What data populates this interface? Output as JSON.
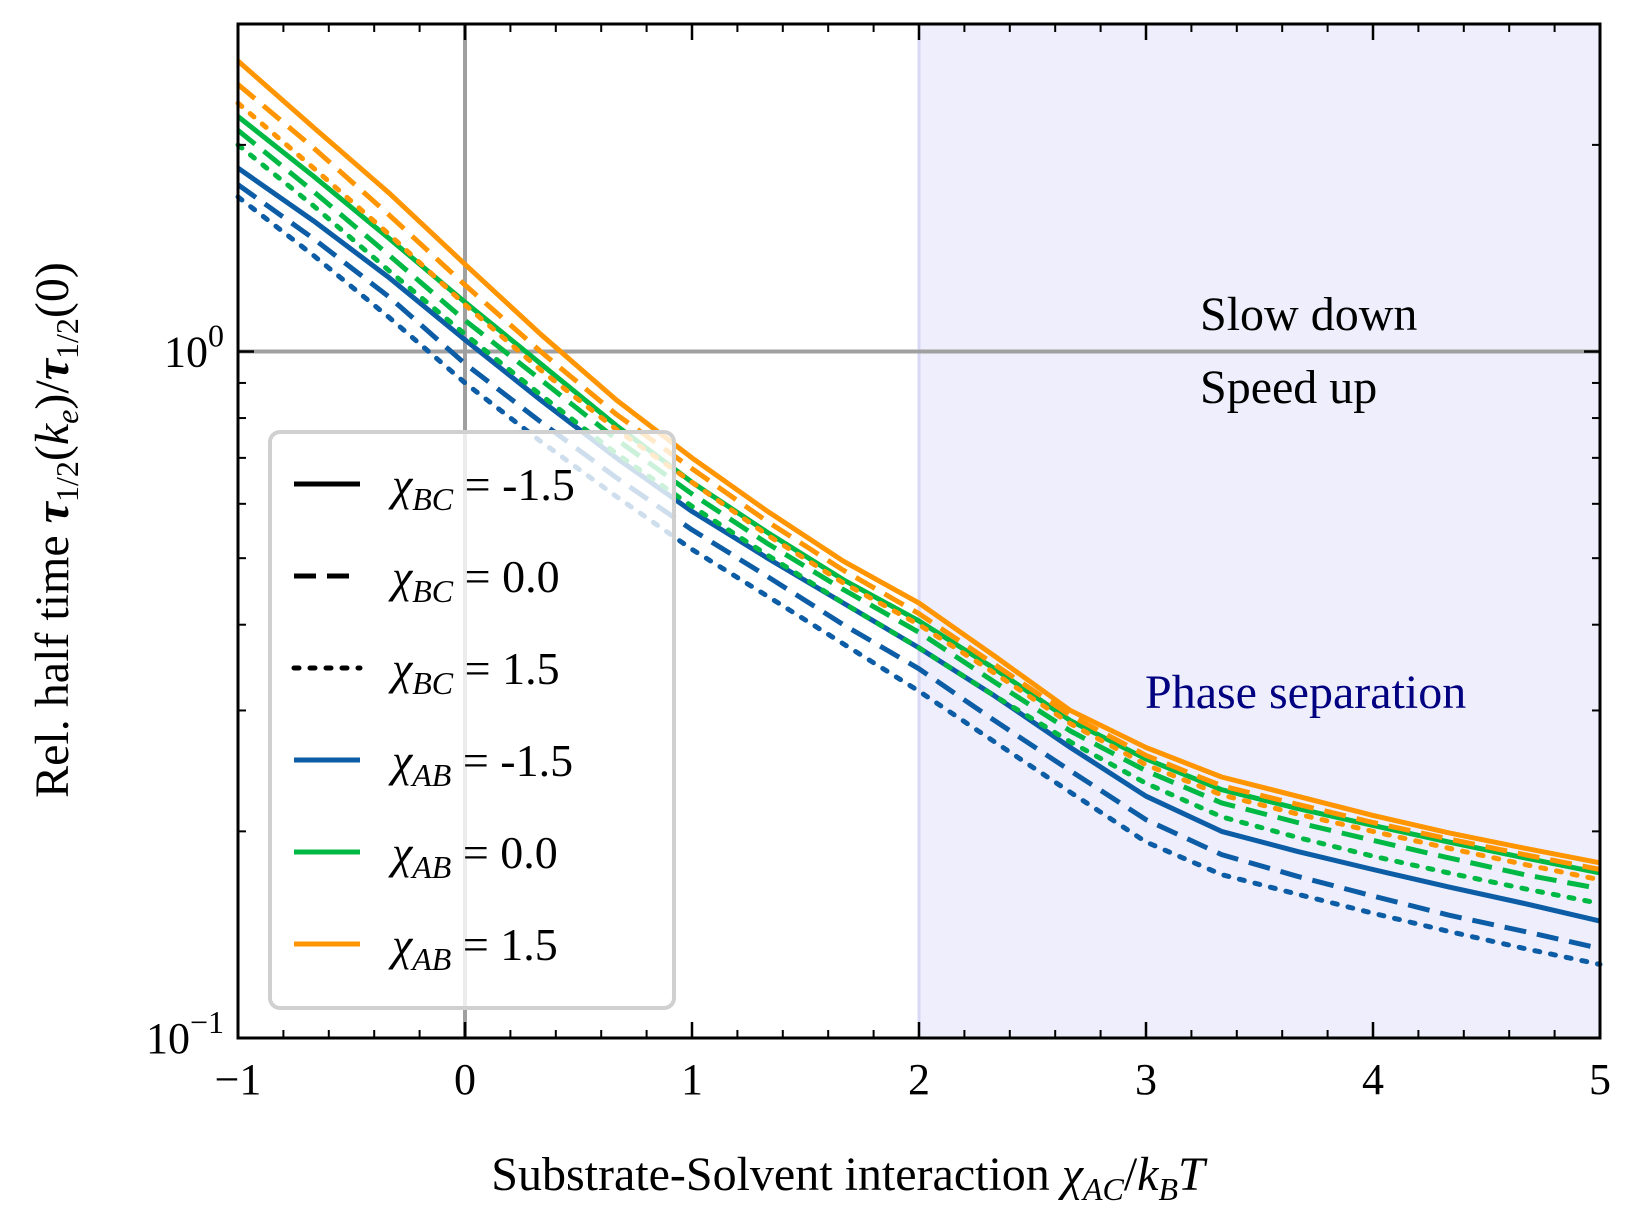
{
  "chart_data": {
    "type": "line",
    "xlabel": "Substrate-Solvent interaction χ_AC/k_BT",
    "xlabel_parts": {
      "prefix": "Substrate-Solvent interaction ",
      "sym1": "χ",
      "sub1": "AC",
      "slash": "/",
      "sym2": "k",
      "sub2": "B",
      "sym3": "T"
    },
    "ylabel": "Rel. half time τ_1/2(k_e)/τ_1/2(0)",
    "ylabel_parts": {
      "prefix": "Rel. half time ",
      "tau1": "τ",
      "sub1": "1/2",
      "mid": "(",
      "k": "k",
      "ksub": "e",
      "close": ")/",
      "tau2": "τ",
      "sub2": "1/2",
      "end": "(0)"
    },
    "xlim": [
      -1,
      5
    ],
    "ylim": [
      0.1,
      3.0
    ],
    "yscale": "log",
    "x_ticks": [
      "−1",
      "0",
      "1",
      "2",
      "3",
      "4",
      "5"
    ],
    "y_ticks": [
      {
        "base": "10",
        "exp": "0"
      },
      {
        "base": "10",
        "exp": "−1"
      }
    ],
    "grid": false,
    "reference_lines": {
      "vertical_x": 0,
      "horizontal_y": 1.0,
      "color": "#a0a0a0"
    },
    "shaded_region": {
      "x_from": 2,
      "x_to": 5,
      "color": "#eeeefc",
      "label": "Phase separation",
      "label_color": "#000080"
    },
    "annotations": [
      "Slow down",
      "Speed up"
    ],
    "colors": {
      "chi_AB_-1.5": "#0c5da5",
      "chi_AB_0.0": "#00b945",
      "chi_AB_1.5": "#ff9500"
    },
    "x": [
      -1,
      -0.667,
      -0.333,
      0,
      0.333,
      0.667,
      1,
      1.333,
      1.667,
      2,
      2.333,
      2.667,
      3,
      3.333,
      3.667,
      4,
      4.333,
      4.667,
      5
    ],
    "series": [
      {
        "chi_AB": "-1.5",
        "chi_BC": "-1.5",
        "color": "#0c5da5",
        "dash": "solid",
        "values": [
          1.85,
          1.55,
          1.28,
          1.04,
          0.85,
          0.7,
          0.585,
          0.5,
          0.43,
          0.37,
          0.315,
          0.265,
          0.225,
          0.2,
          0.187,
          0.176,
          0.166,
          0.157,
          0.148
        ]
      },
      {
        "chi_AB": "-1.5",
        "chi_BC": "0.0",
        "color": "#0c5da5",
        "dash": "dashed",
        "values": [
          1.75,
          1.46,
          1.2,
          0.96,
          0.79,
          0.655,
          0.55,
          0.47,
          0.4,
          0.345,
          0.29,
          0.245,
          0.208,
          0.185,
          0.172,
          0.161,
          0.151,
          0.143,
          0.135
        ]
      },
      {
        "chi_AB": "-1.5",
        "chi_BC": "1.5",
        "color": "#0c5da5",
        "dash": "dotted",
        "values": [
          1.68,
          1.38,
          1.12,
          0.9,
          0.74,
          0.615,
          0.515,
          0.44,
          0.375,
          0.32,
          0.27,
          0.228,
          0.193,
          0.173,
          0.162,
          0.152,
          0.143,
          0.135,
          0.128
        ]
      },
      {
        "chi_AB": "0.0",
        "chi_BC": "-1.5",
        "color": "#00b945",
        "dash": "solid",
        "values": [
          2.2,
          1.8,
          1.46,
          1.18,
          0.96,
          0.78,
          0.645,
          0.545,
          0.465,
          0.405,
          0.345,
          0.29,
          0.255,
          0.23,
          0.216,
          0.204,
          0.193,
          0.183,
          0.174
        ]
      },
      {
        "chi_AB": "0.0",
        "chi_BC": "0.0",
        "color": "#00b945",
        "dash": "dashed",
        "values": [
          2.1,
          1.71,
          1.38,
          1.11,
          0.91,
          0.745,
          0.62,
          0.525,
          0.45,
          0.39,
          0.33,
          0.28,
          0.245,
          0.22,
          0.206,
          0.194,
          0.183,
          0.173,
          0.165
        ]
      },
      {
        "chi_AB": "0.0",
        "chi_BC": "1.5",
        "color": "#00b945",
        "dash": "dotted",
        "values": [
          2.0,
          1.63,
          1.31,
          1.06,
          0.865,
          0.71,
          0.595,
          0.505,
          0.43,
          0.37,
          0.315,
          0.27,
          0.235,
          0.21,
          0.196,
          0.184,
          0.174,
          0.165,
          0.157
        ]
      },
      {
        "chi_AB": "1.5",
        "chi_BC": "-1.5",
        "color": "#ff9500",
        "dash": "solid",
        "values": [
          2.65,
          2.12,
          1.7,
          1.34,
          1.06,
          0.85,
          0.7,
          0.585,
          0.495,
          0.43,
          0.36,
          0.3,
          0.265,
          0.24,
          0.225,
          0.211,
          0.199,
          0.189,
          0.18
        ]
      },
      {
        "chi_AB": "1.5",
        "chi_BC": "0.0",
        "color": "#ff9500",
        "dash": "dashed",
        "values": [
          2.45,
          1.98,
          1.58,
          1.25,
          1.0,
          0.81,
          0.675,
          0.565,
          0.48,
          0.415,
          0.35,
          0.295,
          0.258,
          0.233,
          0.219,
          0.206,
          0.195,
          0.185,
          0.176
        ]
      },
      {
        "chi_AB": "1.5",
        "chi_BC": "1.5",
        "color": "#ff9500",
        "dash": "dotted",
        "values": [
          2.3,
          1.85,
          1.48,
          1.17,
          0.94,
          0.77,
          0.645,
          0.54,
          0.46,
          0.4,
          0.34,
          0.287,
          0.25,
          0.226,
          0.212,
          0.2,
          0.189,
          0.179,
          0.17
        ]
      }
    ],
    "legend": {
      "placement": "center-left",
      "entries": [
        {
          "sym": "χ",
          "sub": "BC",
          "value": "-1.5",
          "style": "solid",
          "color": "#000000"
        },
        {
          "sym": "χ",
          "sub": "BC",
          "value": "0.0",
          "style": "dashed",
          "color": "#000000"
        },
        {
          "sym": "χ",
          "sub": "BC",
          "value": "1.5",
          "style": "dotted",
          "color": "#000000"
        },
        {
          "sym": "χ",
          "sub": "AB",
          "value": "-1.5",
          "style": "solid",
          "color": "#0c5da5"
        },
        {
          "sym": "χ",
          "sub": "AB",
          "value": "0.0",
          "style": "solid",
          "color": "#00b945"
        },
        {
          "sym": "χ",
          "sub": "AB",
          "value": "1.5",
          "style": "solid",
          "color": "#ff9500"
        }
      ]
    }
  }
}
